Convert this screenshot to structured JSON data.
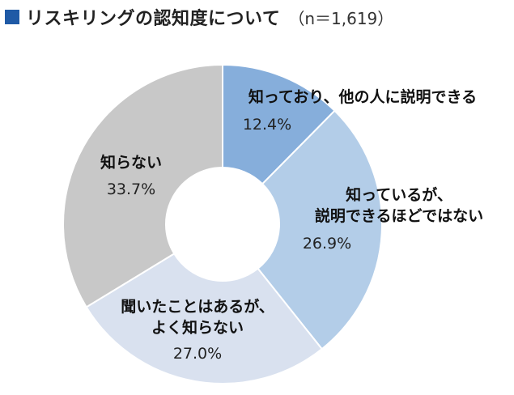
{
  "title": "リスキリングの認知度について",
  "sample_note": "（n＝1,619）",
  "colors": {
    "marker": "#1f5aa6",
    "slices": [
      "#86aedb",
      "#b3cde8",
      "#d9e1ef",
      "#c8c8c8"
    ],
    "border": "#ffffff"
  },
  "chart_data": {
    "type": "pie",
    "donut": true,
    "slices": [
      {
        "label_lines": [
          "知っており、他の人に説明できる"
        ],
        "value": 12.4,
        "value_label": "12.4%"
      },
      {
        "label_lines": [
          "知っているが、",
          "説明できるほどではない"
        ],
        "value": 26.9,
        "value_label": "26.9%"
      },
      {
        "label_lines": [
          "聞いたことはあるが、",
          "よく知らない"
        ],
        "value": 27.0,
        "value_label": "27.0%"
      },
      {
        "label_lines": [
          "知らない"
        ],
        "value": 33.7,
        "value_label": "33.7%"
      }
    ]
  }
}
